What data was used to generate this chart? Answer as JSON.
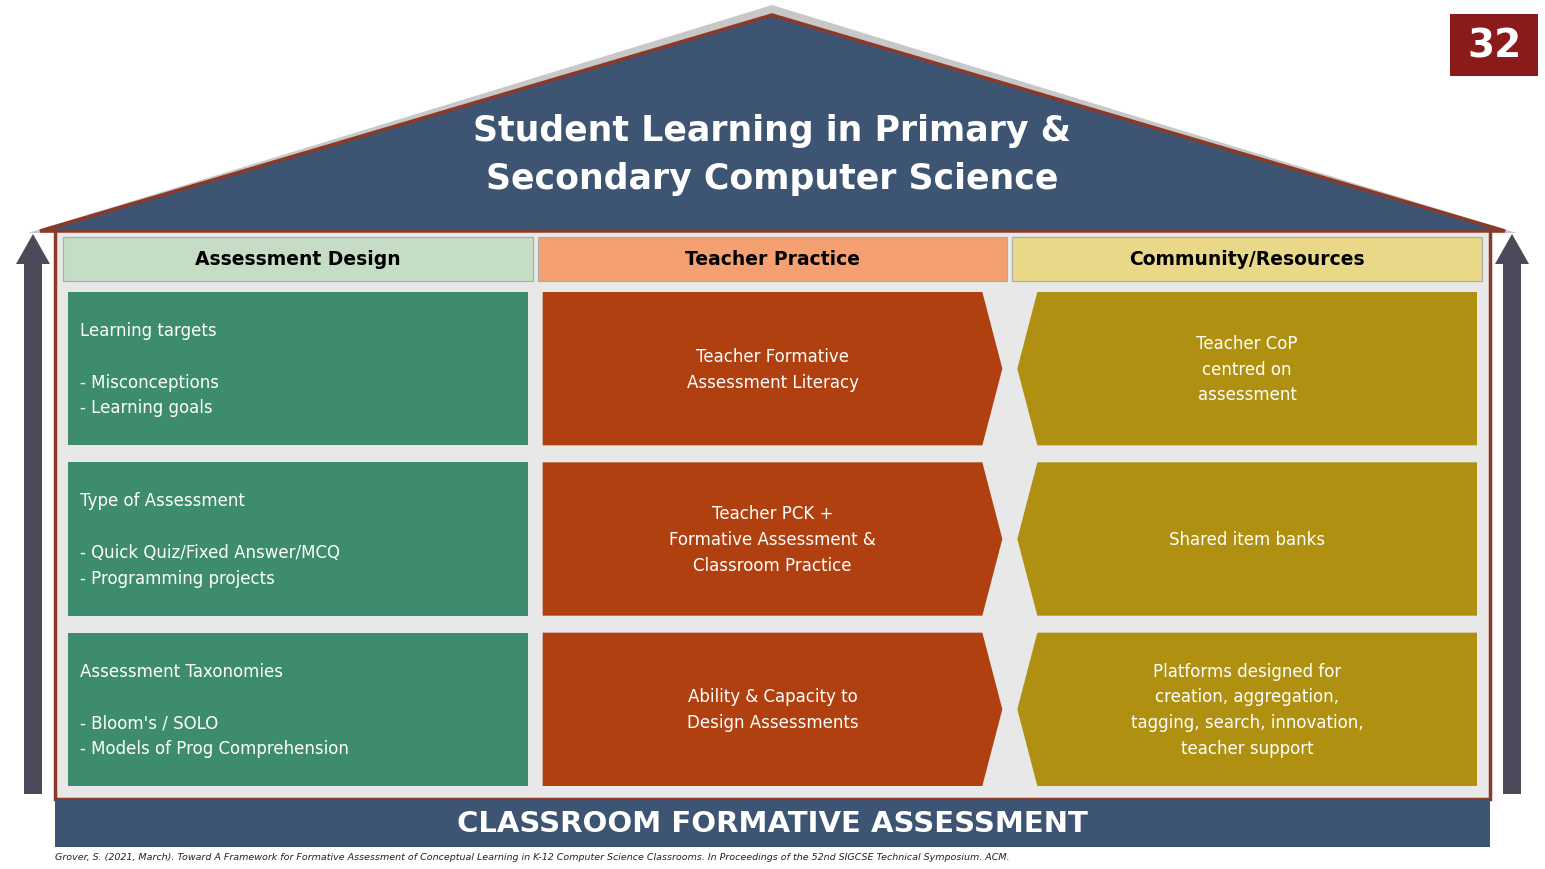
{
  "title_line1": "Student Learning in Primary &",
  "title_line2": "Secondary Computer Science",
  "footer_text": "CLASSROOM FORMATIVE ASSESSMENT",
  "citation": "Grover, S. (2021, March). Toward A Framework for Formative Assessment of Conceptual Learning in K-12 Computer Science Classrooms. In Proceedings of the 52nd SIGCSE Technical Symposium. ACM.",
  "slide_number": "32",
  "background_color": "#ffffff",
  "roof_color": "#3d5472",
  "roof_outer_color": "#c8c8c8",
  "roof_border_color": "#8b3a2a",
  "body_bg_color": "#e8e8e8",
  "footer_bg_color": "#3d5472",
  "footer_text_color": "#ffffff",
  "slide_num_bg": "#8b1a1a",
  "columns": [
    {
      "header": "Assessment Design",
      "header_bg": "#c5dcc5",
      "header_text_color": "#000000",
      "cells": [
        {
          "text": "Learning targets\n\n- Misconceptions\n- Learning goals",
          "bg": "#3d8c6e",
          "text_color": "#ffffff",
          "shape": "rect",
          "text_align": "left"
        },
        {
          "text": "Type of Assessment\n\n- Quick Quiz/Fixed Answer/MCQ\n- Programming projects",
          "bg": "#3d8c6e",
          "text_color": "#ffffff",
          "shape": "rect",
          "text_align": "left"
        },
        {
          "text": "Assessment Taxonomies\n\n- Bloom's / SOLO\n- Models of Prog Comprehension",
          "bg": "#3d8c6e",
          "text_color": "#ffffff",
          "shape": "rect",
          "text_align": "left"
        }
      ]
    },
    {
      "header": "Teacher Practice",
      "header_bg": "#f4a070",
      "header_text_color": "#000000",
      "cells": [
        {
          "text": "Teacher Formative\nAssessment Literacy",
          "bg": "#b04010",
          "text_color": "#ffffff",
          "shape": "arrow_right",
          "text_align": "center"
        },
        {
          "text": "Teacher PCK +\nFormative Assessment &\nClassroom Practice",
          "bg": "#b04010",
          "text_color": "#ffffff",
          "shape": "arrow_right",
          "text_align": "center"
        },
        {
          "text": "Ability & Capacity to\nDesign Assessments",
          "bg": "#b04010",
          "text_color": "#ffffff",
          "shape": "arrow_right",
          "text_align": "center"
        }
      ]
    },
    {
      "header": "Community/Resources",
      "header_bg": "#e8d888",
      "header_text_color": "#000000",
      "cells": [
        {
          "text": "Teacher CoP\ncentred on\nassessment",
          "bg": "#b09010",
          "text_color": "#ffffff",
          "shape": "arrow_left",
          "text_align": "center"
        },
        {
          "text": "Shared item banks",
          "bg": "#b09010",
          "text_color": "#ffffff",
          "shape": "arrow_left",
          "text_align": "center"
        },
        {
          "text": "Platforms designed for\ncreation, aggregation,\ntagging, search, innovation,\nteacher support",
          "bg": "#b09010",
          "text_color": "#ffffff",
          "shape": "arrow_left",
          "text_align": "center"
        }
      ]
    }
  ]
}
